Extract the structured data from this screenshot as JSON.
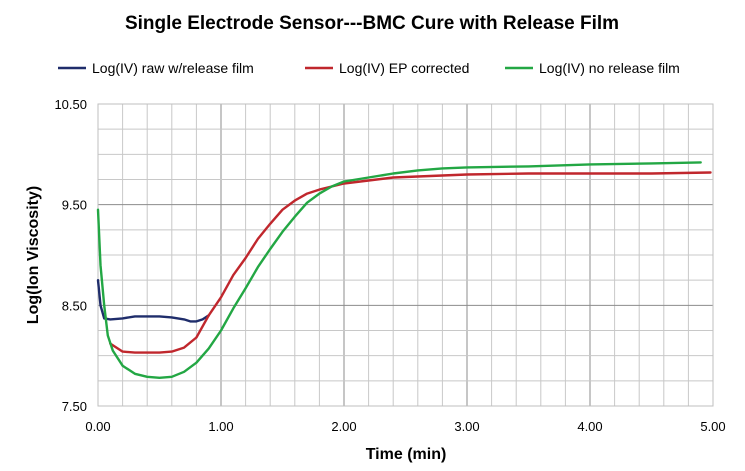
{
  "chart_data": {
    "type": "line",
    "title": "Single Electrode Sensor---BMC Cure with Release Film",
    "xlabel": "Time (min)",
    "ylabel": "Log(Ion Viscosity)",
    "xlim": [
      0,
      5
    ],
    "ylim": [
      7.5,
      10.5
    ],
    "x_major_ticks": [
      0,
      1,
      2,
      3,
      4,
      5
    ],
    "x_tick_labels": [
      "0.00",
      "1.00",
      "2.00",
      "3.00",
      "4.00",
      "5.00"
    ],
    "y_major_ticks": [
      7.5,
      8.5,
      9.5,
      10.5
    ],
    "y_tick_labels": [
      "7.50",
      "8.50",
      "9.50",
      "10.50"
    ],
    "x_minor_step": 0.2,
    "y_minor_step": 0.25,
    "grid": true,
    "legend_position": "top",
    "series": [
      {
        "name": "Log(IV) raw w/release film",
        "color": "#1f2d6b",
        "points": [
          [
            0,
            8.75
          ],
          [
            0.02,
            8.5
          ],
          [
            0.05,
            8.37
          ],
          [
            0.1,
            8.36
          ],
          [
            0.2,
            8.37
          ],
          [
            0.3,
            8.39
          ],
          [
            0.4,
            8.39
          ],
          [
            0.5,
            8.39
          ],
          [
            0.6,
            8.38
          ],
          [
            0.7,
            8.36
          ],
          [
            0.75,
            8.34
          ],
          [
            0.8,
            8.34
          ],
          [
            0.85,
            8.36
          ],
          [
            0.9,
            8.4
          ]
        ]
      },
      {
        "name": "Log(IV) EP corrected",
        "color": "#c0272d",
        "points": [
          [
            0.9,
            8.4
          ],
          [
            1.0,
            8.58
          ],
          [
            1.1,
            8.8
          ],
          [
            1.2,
            8.97
          ],
          [
            1.3,
            9.16
          ],
          [
            1.4,
            9.31
          ],
          [
            1.5,
            9.45
          ],
          [
            1.6,
            9.54
          ],
          [
            1.7,
            9.61
          ],
          [
            1.8,
            9.65
          ],
          [
            1.9,
            9.68
          ],
          [
            2.0,
            9.71
          ],
          [
            2.2,
            9.74
          ],
          [
            2.4,
            9.77
          ],
          [
            2.6,
            9.78
          ],
          [
            2.8,
            9.79
          ],
          [
            3.0,
            9.8
          ],
          [
            3.5,
            9.81
          ],
          [
            4.0,
            9.81
          ],
          [
            4.5,
            9.81
          ],
          [
            4.98,
            9.82
          ]
        ],
        "points_low": [
          [
            0.1,
            8.12
          ],
          [
            0.2,
            8.04
          ],
          [
            0.3,
            8.03
          ],
          [
            0.4,
            8.03
          ],
          [
            0.5,
            8.03
          ],
          [
            0.6,
            8.04
          ],
          [
            0.7,
            8.08
          ],
          [
            0.8,
            8.18
          ],
          [
            0.9,
            8.4
          ]
        ]
      },
      {
        "name": "Log(IV) no release film",
        "color": "#23a744",
        "points": [
          [
            0,
            9.45
          ],
          [
            0.02,
            8.9
          ],
          [
            0.05,
            8.5
          ],
          [
            0.08,
            8.2
          ],
          [
            0.12,
            8.05
          ],
          [
            0.2,
            7.9
          ],
          [
            0.3,
            7.82
          ],
          [
            0.4,
            7.79
          ],
          [
            0.5,
            7.78
          ],
          [
            0.6,
            7.79
          ],
          [
            0.7,
            7.84
          ],
          [
            0.8,
            7.93
          ],
          [
            0.9,
            8.07
          ],
          [
            1.0,
            8.25
          ],
          [
            1.1,
            8.47
          ],
          [
            1.2,
            8.67
          ],
          [
            1.3,
            8.88
          ],
          [
            1.4,
            9.06
          ],
          [
            1.5,
            9.23
          ],
          [
            1.6,
            9.38
          ],
          [
            1.7,
            9.52
          ],
          [
            1.8,
            9.61
          ],
          [
            1.9,
            9.68
          ],
          [
            2.0,
            9.73
          ],
          [
            2.2,
            9.77
          ],
          [
            2.4,
            9.81
          ],
          [
            2.6,
            9.84
          ],
          [
            2.8,
            9.86
          ],
          [
            3.0,
            9.87
          ],
          [
            3.5,
            9.88
          ],
          [
            4.0,
            9.9
          ],
          [
            4.5,
            9.91
          ],
          [
            4.9,
            9.92
          ]
        ]
      }
    ]
  }
}
